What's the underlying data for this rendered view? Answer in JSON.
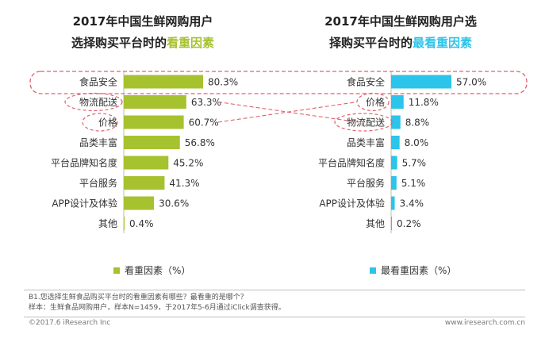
{
  "left_title": {
    "line1": "2017年中国生鲜网购用户",
    "line2_plain": "选择购买平台时的",
    "line2_highlight": "看重因素"
  },
  "right_title": {
    "line1": "2017年中国生鲜网购用户选",
    "line2_plain": "择购买平台时的",
    "line2_highlight": "最看重因素"
  },
  "colors": {
    "left_bar": "#a6c22e",
    "right_bar": "#2bc4ea",
    "highlight_dashes": "#e06070"
  },
  "chart_data": [
    {
      "type": "bar",
      "orientation": "horizontal",
      "categories": [
        "食品安全",
        "物流配送",
        "价格",
        "品类丰富",
        "平台品牌知名度",
        "平台服务",
        "APP设计及体验",
        "其他"
      ],
      "values": [
        80.3,
        63.3,
        60.7,
        56.8,
        45.2,
        41.3,
        30.6,
        0.4
      ],
      "value_labels": [
        "80.3%",
        "63.3%",
        "60.7%",
        "56.8%",
        "45.2%",
        "41.3%",
        "30.6%",
        "0.4%"
      ],
      "legend": "看重因素（%）",
      "legend_placement": "bottom",
      "circled": [
        "物流配送",
        "价格"
      ],
      "boxed": [
        "食品安全"
      ]
    },
    {
      "type": "bar",
      "orientation": "horizontal",
      "categories": [
        "食品安全",
        "价格",
        "物流配送",
        "品类丰富",
        "平台品牌知名度",
        "平台服务",
        "APP设计及体验",
        "其他"
      ],
      "values": [
        57.0,
        11.8,
        8.8,
        8.0,
        5.7,
        5.1,
        3.4,
        0.2
      ],
      "value_labels": [
        "57.0%",
        "11.8%",
        "8.8%",
        "8.0%",
        "5.7%",
        "5.1%",
        "3.4%",
        "0.2%"
      ],
      "legend": "最看重因素（%）",
      "legend_placement": "bottom",
      "circled": [
        "价格",
        "物流配送"
      ],
      "boxed": [
        "食品安全"
      ]
    }
  ],
  "footnote": {
    "line1": "B1.您选择生鲜食品购买平台时的看重因素有哪些？最看重的是哪个？",
    "line2": "样本：生鲜食品网购用户，样本N=1459，于2017年5-6月通过iClick调查获得。"
  },
  "footer": {
    "copyright": "©2017.6 iResearch Inc",
    "website": "www.iresearch.com.cn"
  }
}
